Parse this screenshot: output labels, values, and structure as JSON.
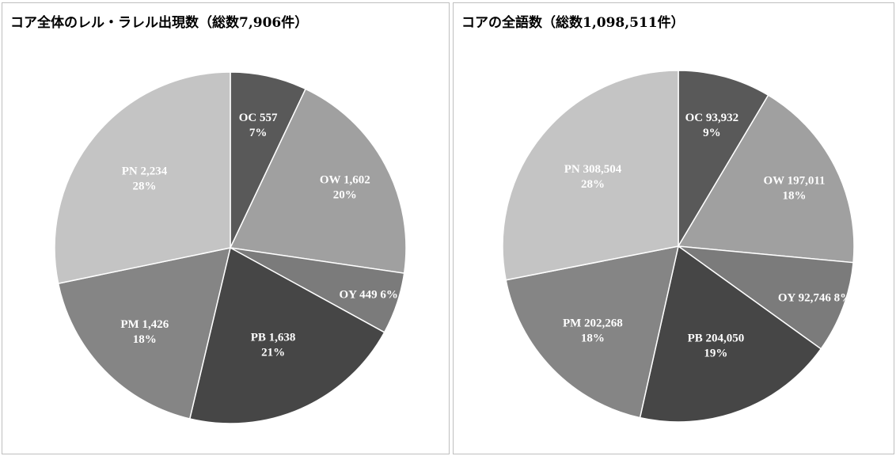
{
  "chart_data": [
    {
      "type": "pie",
      "title": "コア全体のレル・ラレル出現数（総数7,906件）",
      "slices": [
        {
          "name": "OC",
          "value": 557,
          "value_label": "557",
          "percent_label": "7%",
          "color": "#595959"
        },
        {
          "name": "OW",
          "value": 1602,
          "value_label": "1,602",
          "percent_label": "20%",
          "color": "#a0a0a0"
        },
        {
          "name": "OY",
          "value": 449,
          "value_label": "449",
          "percent_label": "6%",
          "color": "#7b7b7b"
        },
        {
          "name": "PB",
          "value": 1638,
          "value_label": "1,638",
          "percent_label": "21%",
          "color": "#464646"
        },
        {
          "name": "PM",
          "value": 1426,
          "value_label": "1,426",
          "percent_label": "18%",
          "color": "#858585"
        },
        {
          "name": "PN",
          "value": 2234,
          "value_label": "2,234",
          "percent_label": "28%",
          "color": "#c4c4c4"
        }
      ]
    },
    {
      "type": "pie",
      "title": "コアの全語数（総数1,098,511件）",
      "slices": [
        {
          "name": "OC",
          "value": 93932,
          "value_label": "93,932",
          "percent_label": "9%",
          "color": "#595959"
        },
        {
          "name": "OW",
          "value": 197011,
          "value_label": "197,011",
          "percent_label": "18%",
          "color": "#a0a0a0"
        },
        {
          "name": "OY",
          "value": 92746,
          "value_label": "92,746",
          "percent_label": "8%",
          "color": "#7b7b7b"
        },
        {
          "name": "PB",
          "value": 204050,
          "value_label": "204,050",
          "percent_label": "19%",
          "color": "#464646"
        },
        {
          "name": "PM",
          "value": 202268,
          "value_label": "202,268",
          "percent_label": "18%",
          "color": "#858585"
        },
        {
          "name": "PN",
          "value": 308504,
          "value_label": "308,504",
          "percent_label": "28%",
          "color": "#c4c4c4"
        }
      ]
    }
  ]
}
